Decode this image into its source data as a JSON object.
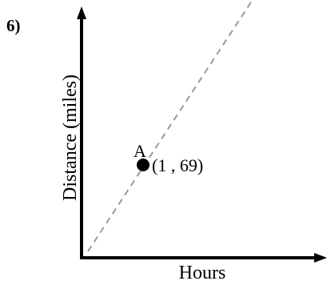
{
  "problem_number": "6)",
  "chart_data": {
    "type": "line",
    "xlabel": "Hours",
    "ylabel": "Distance (miles)",
    "series": [
      {
        "style": "dashed",
        "color": "#999999",
        "x": [
          0,
          1
        ],
        "y": [
          0,
          69
        ]
      }
    ],
    "points": [
      {
        "name": "A",
        "x": 1,
        "y": 69,
        "label": "(1 , 69)"
      }
    ],
    "tick_labels": false,
    "grid": false
  }
}
